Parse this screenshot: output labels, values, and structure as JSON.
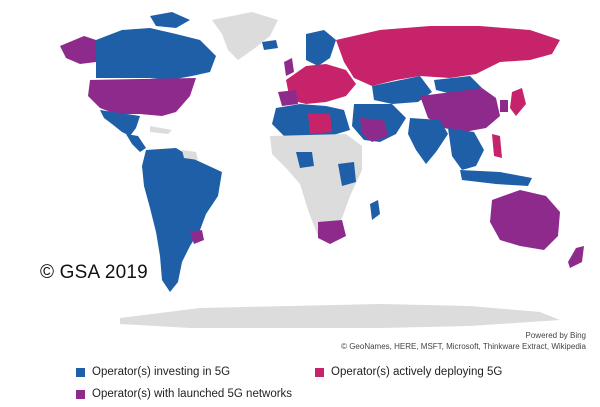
{
  "copyright": "© GSA 2019",
  "attribution": {
    "powered_by": "Powered by Bing",
    "sources": "© GeoNames, HERE, MSFT, Microsoft, Thinkware Extract, Wikipedia"
  },
  "legend": [
    {
      "label": "Operator(s) investing in 5G",
      "color": "#1f5fa8"
    },
    {
      "label": "Operator(s) actively deploying 5G",
      "color": "#c7236b"
    },
    {
      "label": "Operator(s) with launched 5G networks",
      "color": "#8e2a8c"
    }
  ],
  "colors": {
    "no_data": "#dcdcdc",
    "investing": "#1f5fa8",
    "deploying": "#c7236b",
    "launched": "#8e2a8c"
  }
}
